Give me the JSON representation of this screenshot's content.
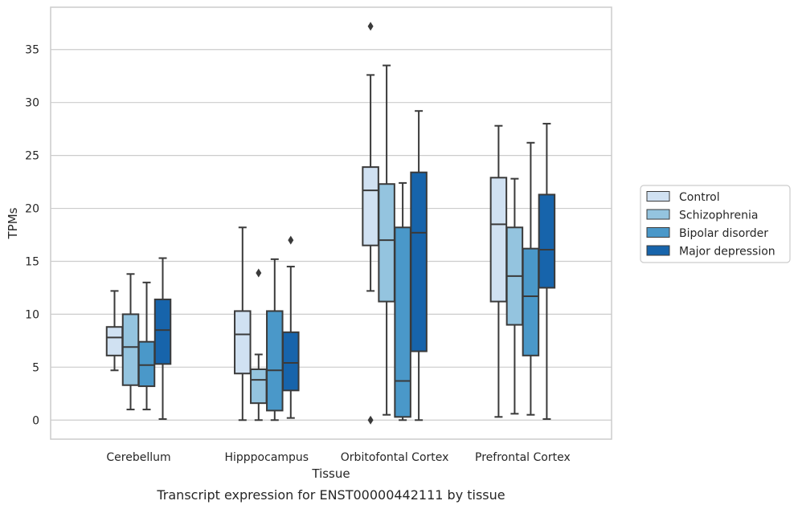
{
  "caption": "Transcript expression for ENST00000442111 by tissue",
  "chart_data": {
    "type": "boxplot",
    "title": "",
    "xlabel": "Tissue",
    "ylabel": "TPMs",
    "ylim": [
      -1.8,
      39
    ],
    "yticks": [
      0,
      5,
      10,
      15,
      20,
      25,
      30,
      35
    ],
    "grid": "horizontal",
    "legend_position": "right",
    "categories": [
      "Cerebellum",
      "Hipppocampus",
      "Orbitofontal Cortex",
      "Prefrontal Cortex"
    ],
    "series": [
      {
        "name": "Control",
        "color": "#d0e1f2",
        "boxes": [
          {
            "whisker_low": 4.7,
            "q1": 6.1,
            "median": 7.8,
            "q3": 8.8,
            "whisker_high": 12.2,
            "outliers": []
          },
          {
            "whisker_low": 0.0,
            "q1": 4.4,
            "median": 8.1,
            "q3": 10.3,
            "whisker_high": 18.2,
            "outliers": []
          },
          {
            "whisker_low": 12.2,
            "q1": 16.5,
            "median": 21.7,
            "q3": 23.9,
            "whisker_high": 32.6,
            "outliers": [
              37.2,
              0.0
            ]
          },
          {
            "whisker_low": 0.3,
            "q1": 11.2,
            "median": 18.5,
            "q3": 22.9,
            "whisker_high": 27.8,
            "outliers": []
          }
        ]
      },
      {
        "name": "Schizophrenia",
        "color": "#94c4df",
        "boxes": [
          {
            "whisker_low": 1.0,
            "q1": 3.3,
            "median": 6.9,
            "q3": 10.0,
            "whisker_high": 13.8,
            "outliers": []
          },
          {
            "whisker_low": 0.0,
            "q1": 1.6,
            "median": 3.8,
            "q3": 4.8,
            "whisker_high": 6.2,
            "outliers": [
              13.9
            ]
          },
          {
            "whisker_low": 0.5,
            "q1": 11.2,
            "median": 17.0,
            "q3": 22.3,
            "whisker_high": 33.5,
            "outliers": []
          },
          {
            "whisker_low": 0.6,
            "q1": 9.0,
            "median": 13.6,
            "q3": 18.2,
            "whisker_high": 22.8,
            "outliers": []
          }
        ]
      },
      {
        "name": "Bipolar disorder",
        "color": "#4a98c9",
        "boxes": [
          {
            "whisker_low": 1.0,
            "q1": 3.2,
            "median": 5.2,
            "q3": 7.4,
            "whisker_high": 13.0,
            "outliers": []
          },
          {
            "whisker_low": 0.0,
            "q1": 0.9,
            "median": 4.7,
            "q3": 10.3,
            "whisker_high": 15.2,
            "outliers": []
          },
          {
            "whisker_low": 0.0,
            "q1": 0.3,
            "median": 3.7,
            "q3": 18.2,
            "whisker_high": 22.4,
            "outliers": []
          },
          {
            "whisker_low": 0.5,
            "q1": 6.1,
            "median": 11.7,
            "q3": 16.2,
            "whisker_high": 26.2,
            "outliers": []
          }
        ]
      },
      {
        "name": "Major depression",
        "color": "#1764ab",
        "boxes": [
          {
            "whisker_low": 0.1,
            "q1": 5.3,
            "median": 8.5,
            "q3": 11.4,
            "whisker_high": 15.3,
            "outliers": []
          },
          {
            "whisker_low": 0.2,
            "q1": 2.8,
            "median": 5.4,
            "q3": 8.3,
            "whisker_high": 14.5,
            "outliers": [
              17.0
            ]
          },
          {
            "whisker_low": 0.0,
            "q1": 6.5,
            "median": 17.7,
            "q3": 23.4,
            "whisker_high": 29.2,
            "outliers": []
          },
          {
            "whisker_low": 0.1,
            "q1": 12.5,
            "median": 16.1,
            "q3": 21.3,
            "whisker_high": 28.0,
            "outliers": []
          }
        ]
      }
    ]
  }
}
